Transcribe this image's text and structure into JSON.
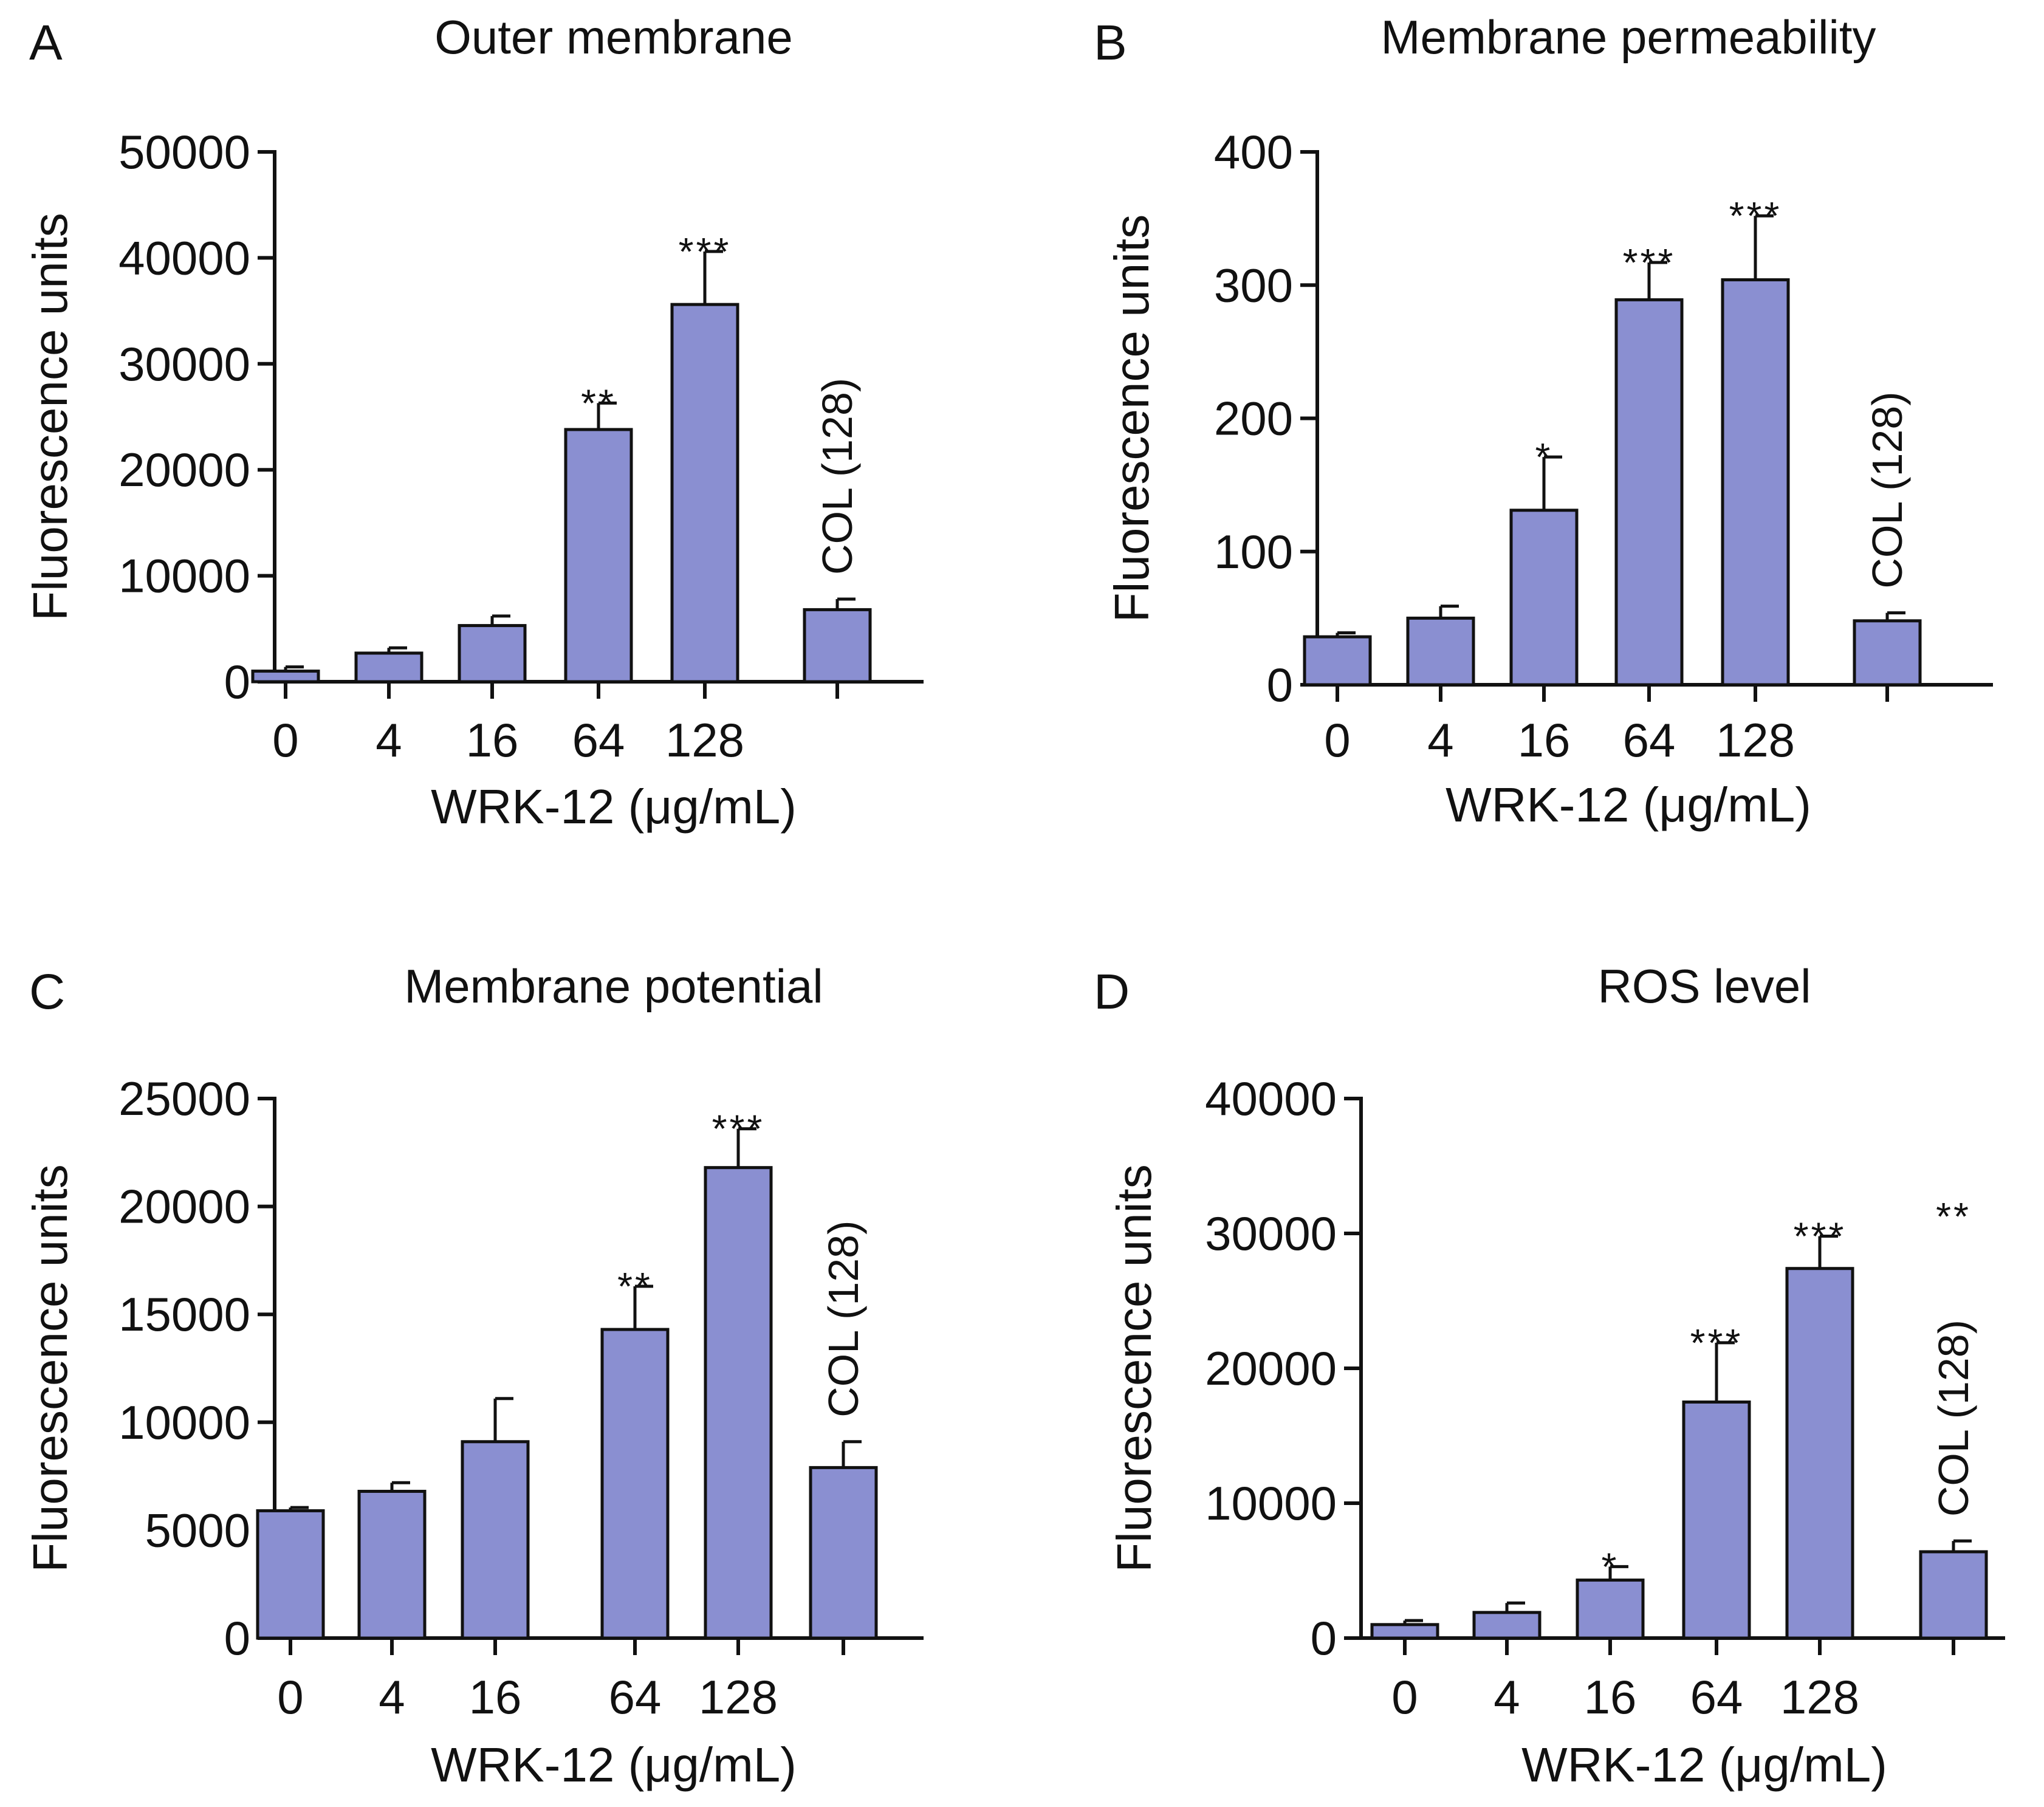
{
  "figure": {
    "colors": {
      "bar_fill": "#8a8fd1",
      "ink": "#111111",
      "background": "#ffffff"
    }
  },
  "chart_data": [
    {
      "type": "bar",
      "panel": "A",
      "title": "Outer membrane",
      "xlabel": "WRK-12 (μg/mL)",
      "ylabel": "Fluorescence units",
      "categories": [
        "0",
        "4",
        "16",
        "64",
        "128",
        ""
      ],
      "category_annotation": "COL (128)",
      "values": [
        1000,
        2700,
        5300,
        23800,
        35600,
        6800
      ],
      "errors": [
        400,
        500,
        900,
        2500,
        5000,
        1000
      ],
      "significance": [
        "",
        "",
        "",
        "**",
        "***",
        ""
      ],
      "ylim": [
        0,
        50000
      ],
      "yticks": [
        0,
        10000,
        20000,
        30000,
        40000,
        50000
      ],
      "grid": false,
      "legend": "none"
    },
    {
      "type": "bar",
      "panel": "B",
      "title": "Membrane permeability",
      "xlabel": "WRK-12 (μg/mL)",
      "ylabel": "Fluorescence units",
      "categories": [
        "0",
        "4",
        "16",
        "64",
        "128",
        ""
      ],
      "category_annotation": "COL (128)",
      "values": [
        36,
        50,
        131,
        289,
        304,
        48
      ],
      "errors": [
        3,
        9,
        40,
        28,
        48,
        6
      ],
      "significance": [
        "",
        "",
        "*",
        "***",
        "***",
        ""
      ],
      "ylim": [
        0,
        400
      ],
      "yticks": [
        0,
        100,
        200,
        300,
        400
      ],
      "grid": false,
      "legend": "none"
    },
    {
      "type": "bar",
      "panel": "C",
      "title": "Membrane potential",
      "xlabel": "WRK-12 (μg/mL)",
      "ylabel": "Fluorescence units",
      "categories": [
        "0",
        "4",
        "16",
        "64",
        "128",
        ""
      ],
      "category_annotation": "COL (128)",
      "values": [
        5900,
        6800,
        9100,
        14300,
        21800,
        7900
      ],
      "errors": [
        150,
        400,
        2000,
        2000,
        1800,
        1200
      ],
      "significance": [
        "",
        "",
        "",
        "**",
        "***",
        ""
      ],
      "ylim": [
        0,
        25000
      ],
      "yticks": [
        0,
        5000,
        10000,
        15000,
        20000,
        25000
      ],
      "grid": false,
      "legend": "none"
    },
    {
      "type": "bar",
      "panel": "D",
      "title": "ROS level",
      "xlabel": "WRK-12 (μg/mL)",
      "ylabel": "Fluorescence units",
      "categories": [
        "0",
        "4",
        "16",
        "64",
        "128",
        ""
      ],
      "category_annotation": "COL (128)",
      "values": [
        1000,
        1900,
        4300,
        17500,
        27400,
        6400
      ],
      "errors": [
        300,
        700,
        1000,
        4400,
        2400,
        800
      ],
      "significance": [
        "",
        "",
        "*",
        "***",
        "***",
        "**"
      ],
      "ylim": [
        0,
        40000
      ],
      "yticks": [
        0,
        10000,
        20000,
        30000,
        40000
      ],
      "grid": false,
      "legend": "none"
    }
  ]
}
